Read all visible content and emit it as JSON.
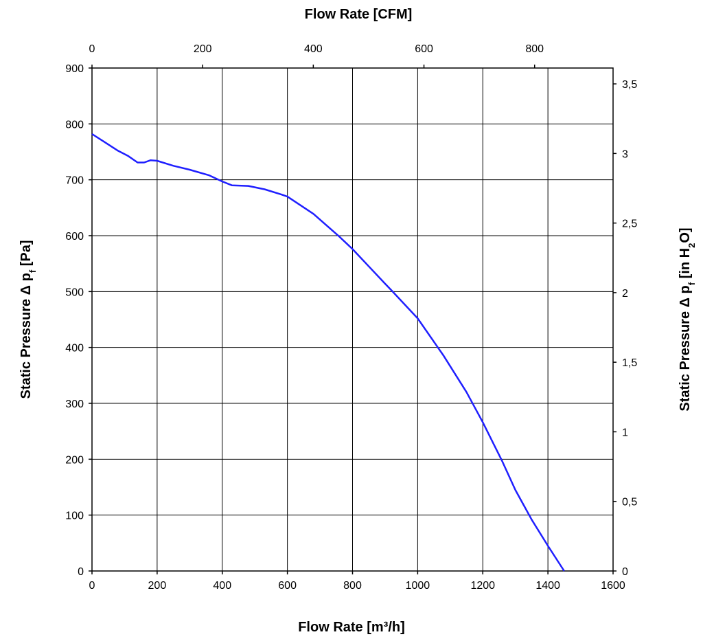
{
  "chart_data": {
    "type": "line",
    "title": "",
    "xlabel": "Flow Rate [m³/h]",
    "x2label": "Flow Rate [CFM]",
    "ylabel": {
      "base": "Static Pressure Δ p",
      "sub": "f",
      "unit": " [Pa]"
    },
    "y2label": {
      "base": "Static Pressure Δ p",
      "sub1": "f",
      "mid": " [in H",
      "sub2": "2",
      "end": "O]"
    },
    "xlim": [
      0,
      1600
    ],
    "ylim": [
      0,
      900
    ],
    "x2lim": [
      0,
      941.8
    ],
    "y2lim": [
      0,
      3.614
    ],
    "xticks": [
      "0",
      "200",
      "400",
      "600",
      "800",
      "1000",
      "1200",
      "1400",
      "1600"
    ],
    "yticks": [
      "0",
      "100",
      "200",
      "300",
      "400",
      "500",
      "600",
      "700",
      "800",
      "900"
    ],
    "x2ticks": [
      {
        "value": 0,
        "label": "0"
      },
      {
        "value": 200,
        "label": "200"
      },
      {
        "value": 400,
        "label": "400"
      },
      {
        "value": 600,
        "label": "600"
      },
      {
        "value": 800,
        "label": "800"
      }
    ],
    "y2ticks": [
      {
        "value": 0,
        "label": "0"
      },
      {
        "value": 0.5,
        "label": "0,5"
      },
      {
        "value": 1,
        "label": "1"
      },
      {
        "value": 1.5,
        "label": "1,5"
      },
      {
        "value": 2,
        "label": "2"
      },
      {
        "value": 2.5,
        "label": "2,5"
      },
      {
        "value": 3,
        "label": "3"
      },
      {
        "value": 3.5,
        "label": "3,5"
      }
    ],
    "grid": true,
    "series": [
      {
        "name": "Static Pressure",
        "color": "#1f1fff",
        "x": [
          0,
          40,
          80,
          110,
          140,
          160,
          180,
          200,
          250,
          300,
          360,
          400,
          430,
          480,
          530,
          580,
          600,
          680,
          760,
          800,
          850,
          900,
          920,
          1000,
          1080,
          1150,
          1200,
          1260,
          1300,
          1350,
          1400,
          1450
        ],
        "y": [
          782,
          767,
          752,
          743,
          731,
          731,
          735,
          734,
          725,
          718,
          708,
          697,
          690,
          689,
          683,
          674,
          670,
          639,
          598,
          576,
          545,
          514,
          502,
          452,
          385,
          320,
          266,
          196,
          145,
          92,
          45,
          0
        ]
      }
    ]
  }
}
